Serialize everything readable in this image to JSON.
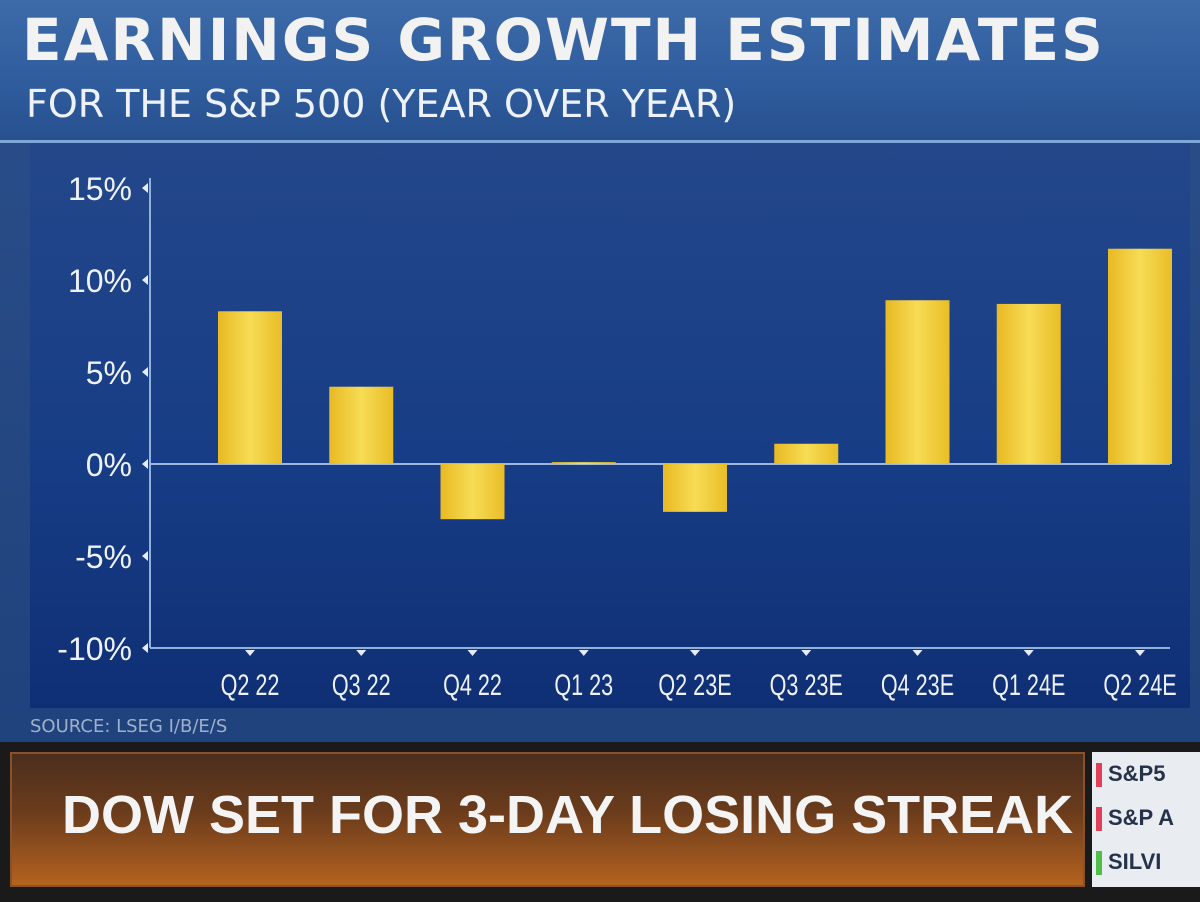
{
  "header": {
    "title": "EARNINGS GROWTH ESTIMATES",
    "subtitle": "FOR THE S&P 500 (YEAR OVER YEAR)"
  },
  "chart_data": {
    "type": "bar",
    "categories": [
      "Q2 22",
      "Q3 22",
      "Q4 22",
      "Q1 23",
      "Q2 23E",
      "Q3 23E",
      "Q4 23E",
      "Q1 24E",
      "Q2 24E"
    ],
    "values": [
      8.3,
      4.2,
      -3.0,
      0.1,
      -2.6,
      1.1,
      8.9,
      8.7,
      11.7
    ],
    "ylim": [
      -10,
      15
    ],
    "yticks": [
      15,
      10,
      5,
      0,
      -5,
      -10
    ],
    "ytick_labels": [
      "15%",
      "10%",
      "5%",
      "0%",
      "-5%",
      "-10%"
    ],
    "title": "EARNINGS GROWTH ESTIMATES",
    "subtitle": "FOR THE S&P 500 (YEAR OVER YEAR)",
    "xlabel": "",
    "ylabel": "",
    "grid": false,
    "bar_color": "#f3cf3a"
  },
  "source_text": "SOURCE: LSEG I/B/E/S",
  "headline": "DOW SET FOR 3-DAY LOSING STREAK",
  "ticker": [
    {
      "label": "S&P5",
      "flag_color": "#e0405a"
    },
    {
      "label": "S&P A",
      "flag_color": "#e0405a"
    },
    {
      "label": "SILVI",
      "flag_color": "#4fbf4a"
    }
  ],
  "colors": {
    "panel_background": "#1f4688",
    "header_background": "#2f5c9d",
    "headline_orange": "#b5621f"
  }
}
